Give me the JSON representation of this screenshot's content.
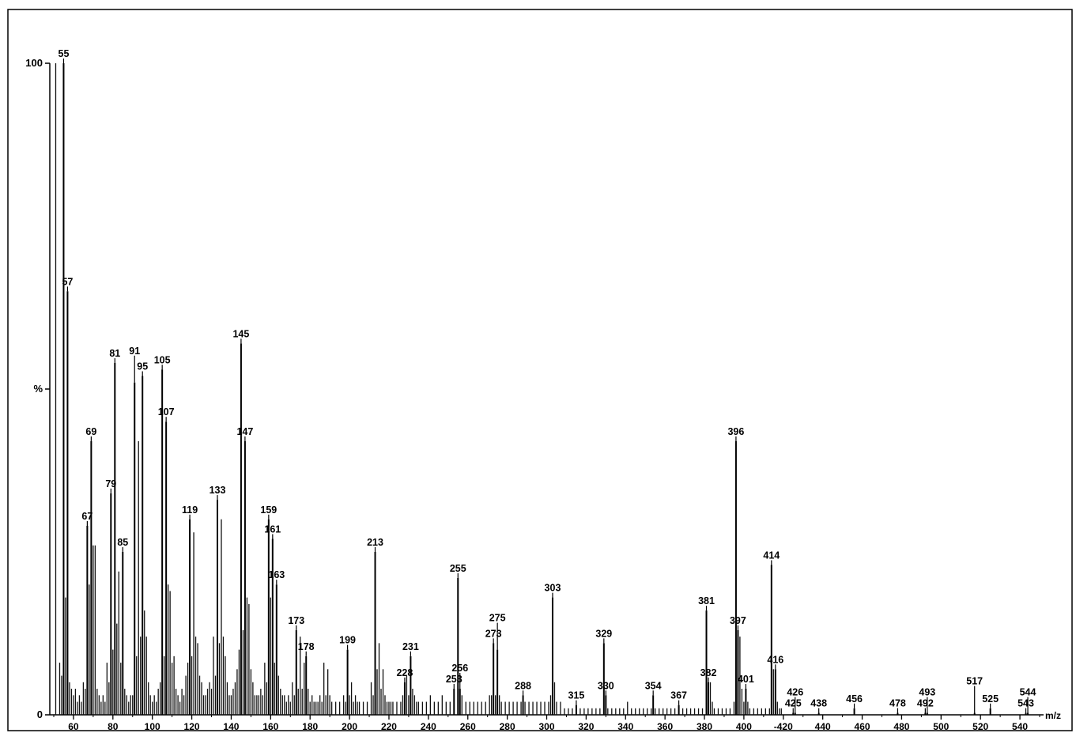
{
  "chart_data": {
    "type": "bar",
    "xlabel": "m/z",
    "ylabel": "%",
    "xlim": [
      48,
      552
    ],
    "ylim": [
      0,
      100
    ],
    "y_ticks": [
      {
        "value": 100,
        "label": "100"
      },
      {
        "value": 50,
        "label": "%"
      },
      {
        "value": 0,
        "label": "0"
      }
    ],
    "x_ticks": [
      60,
      80,
      100,
      120,
      140,
      160,
      180,
      200,
      220,
      240,
      260,
      280,
      300,
      320,
      340,
      360,
      380,
      400,
      420,
      440,
      460,
      480,
      500,
      520,
      540
    ],
    "x_tick_labels": [
      "60",
      "80",
      "100",
      "120",
      "140",
      "160",
      "180",
      "200",
      "220",
      "240",
      "260",
      "280",
      "300",
      "320",
      "340",
      "360",
      "380",
      "400",
      "-420",
      "440",
      "460",
      "480",
      "500",
      "520",
      "540"
    ],
    "peaks": [
      {
        "mz": 55,
        "intensity": 100,
        "label": "55"
      },
      {
        "mz": 57,
        "intensity": 65,
        "label": "57"
      },
      {
        "mz": 67,
        "intensity": 29,
        "label": "67"
      },
      {
        "mz": 69,
        "intensity": 42,
        "label": "69"
      },
      {
        "mz": 79,
        "intensity": 34,
        "label": "79"
      },
      {
        "mz": 81,
        "intensity": 54,
        "label": "81"
      },
      {
        "mz": 85,
        "intensity": 25,
        "label": "85"
      },
      {
        "mz": 91,
        "intensity": 51,
        "label": "91"
      },
      {
        "mz": 95,
        "intensity": 52,
        "label": "95"
      },
      {
        "mz": 105,
        "intensity": 53,
        "label": "105"
      },
      {
        "mz": 107,
        "intensity": 45,
        "label": "107"
      },
      {
        "mz": 119,
        "intensity": 30,
        "label": "119"
      },
      {
        "mz": 133,
        "intensity": 33,
        "label": "133"
      },
      {
        "mz": 145,
        "intensity": 57,
        "label": "145"
      },
      {
        "mz": 147,
        "intensity": 42,
        "label": "147"
      },
      {
        "mz": 159,
        "intensity": 30,
        "label": "159"
      },
      {
        "mz": 161,
        "intensity": 27,
        "label": "161"
      },
      {
        "mz": 163,
        "intensity": 20,
        "label": "163"
      },
      {
        "mz": 173,
        "intensity": 13,
        "label": "173"
      },
      {
        "mz": 178,
        "intensity": 9,
        "label": "178"
      },
      {
        "mz": 199,
        "intensity": 10,
        "label": "199"
      },
      {
        "mz": 213,
        "intensity": 25,
        "label": "213"
      },
      {
        "mz": 228,
        "intensity": 5,
        "label": "228"
      },
      {
        "mz": 231,
        "intensity": 9,
        "label": "231"
      },
      {
        "mz": 253,
        "intensity": 4,
        "label": "253"
      },
      {
        "mz": 255,
        "intensity": 21,
        "label": "255"
      },
      {
        "mz": 256,
        "intensity": 4,
        "label": "256"
      },
      {
        "mz": 273,
        "intensity": 11,
        "label": "273"
      },
      {
        "mz": 275,
        "intensity": 10,
        "label": "275"
      },
      {
        "mz": 288,
        "intensity": 3,
        "label": "288"
      },
      {
        "mz": 303,
        "intensity": 18,
        "label": "303"
      },
      {
        "mz": 315,
        "intensity": 1.5,
        "label": "315"
      },
      {
        "mz": 329,
        "intensity": 11,
        "label": "329"
      },
      {
        "mz": 330,
        "intensity": 3,
        "label": "330"
      },
      {
        "mz": 354,
        "intensity": 3,
        "label": "354"
      },
      {
        "mz": 367,
        "intensity": 1.5,
        "label": "367"
      },
      {
        "mz": 381,
        "intensity": 16,
        "label": "381"
      },
      {
        "mz": 382,
        "intensity": 5,
        "label": "382"
      },
      {
        "mz": 396,
        "intensity": 42,
        "label": "396"
      },
      {
        "mz": 397,
        "intensity": 13,
        "label": "397"
      },
      {
        "mz": 401,
        "intensity": 4,
        "label": "401"
      },
      {
        "mz": 414,
        "intensity": 23,
        "label": "414"
      },
      {
        "mz": 416,
        "intensity": 7,
        "label": "416"
      },
      {
        "mz": 425,
        "intensity": 0.3,
        "label": "425"
      },
      {
        "mz": 426,
        "intensity": 0.3,
        "label": "426"
      },
      {
        "mz": 438,
        "intensity": 0.3,
        "label": "438"
      },
      {
        "mz": 456,
        "intensity": 1,
        "label": "456"
      },
      {
        "mz": 478,
        "intensity": 0.3,
        "label": "478"
      },
      {
        "mz": 492,
        "intensity": 0.3,
        "label": "492"
      },
      {
        "mz": 493,
        "intensity": 0.3,
        "label": "493"
      },
      {
        "mz": 517,
        "intensity": 0.3,
        "label": "517"
      },
      {
        "mz": 525,
        "intensity": 1,
        "label": "525"
      },
      {
        "mz": 543,
        "intensity": 0.3,
        "label": "543"
      },
      {
        "mz": 544,
        "intensity": 0.3,
        "label": "544"
      }
    ],
    "minor_peaks": [
      [
        51,
        100
      ],
      [
        53,
        8
      ],
      [
        54,
        6
      ],
      [
        56,
        18
      ],
      [
        58,
        5
      ],
      [
        59,
        4
      ],
      [
        60,
        3
      ],
      [
        61,
        4
      ],
      [
        62,
        2
      ],
      [
        63,
        3
      ],
      [
        64,
        2
      ],
      [
        65,
        5
      ],
      [
        66,
        4
      ],
      [
        68,
        20
      ],
      [
        70,
        26
      ],
      [
        71,
        26
      ],
      [
        72,
        4
      ],
      [
        73,
        3
      ],
      [
        74,
        2
      ],
      [
        75,
        3
      ],
      [
        76,
        2
      ],
      [
        77,
        8
      ],
      [
        78,
        5
      ],
      [
        80,
        10
      ],
      [
        82,
        14
      ],
      [
        83,
        22
      ],
      [
        84,
        8
      ],
      [
        86,
        4
      ],
      [
        87,
        3
      ],
      [
        88,
        2
      ],
      [
        89,
        3
      ],
      [
        90,
        3
      ],
      [
        92,
        9
      ],
      [
        93,
        42
      ],
      [
        94,
        12
      ],
      [
        96,
        16
      ],
      [
        97,
        12
      ],
      [
        98,
        5
      ],
      [
        99,
        3
      ],
      [
        100,
        2
      ],
      [
        101,
        3
      ],
      [
        102,
        2
      ],
      [
        103,
        4
      ],
      [
        104,
        5
      ],
      [
        106,
        9
      ],
      [
        108,
        20
      ],
      [
        109,
        19
      ],
      [
        110,
        8
      ],
      [
        111,
        9
      ],
      [
        112,
        4
      ],
      [
        113,
        3
      ],
      [
        114,
        2
      ],
      [
        115,
        4
      ],
      [
        116,
        3
      ],
      [
        117,
        6
      ],
      [
        118,
        8
      ],
      [
        120,
        9
      ],
      [
        121,
        28
      ],
      [
        122,
        12
      ],
      [
        123,
        11
      ],
      [
        124,
        6
      ],
      [
        125,
        5
      ],
      [
        126,
        3
      ],
      [
        127,
        3
      ],
      [
        128,
        4
      ],
      [
        129,
        5
      ],
      [
        130,
        4
      ],
      [
        131,
        12
      ],
      [
        132,
        6
      ],
      [
        134,
        11
      ],
      [
        135,
        30
      ],
      [
        136,
        12
      ],
      [
        137,
        9
      ],
      [
        138,
        5
      ],
      [
        139,
        3
      ],
      [
        140,
        3
      ],
      [
        141,
        4
      ],
      [
        142,
        5
      ],
      [
        143,
        7
      ],
      [
        144,
        10
      ],
      [
        146,
        13
      ],
      [
        148,
        18
      ],
      [
        149,
        17
      ],
      [
        150,
        7
      ],
      [
        151,
        5
      ],
      [
        152,
        3
      ],
      [
        153,
        3
      ],
      [
        154,
        3
      ],
      [
        155,
        4
      ],
      [
        156,
        3
      ],
      [
        157,
        8
      ],
      [
        158,
        5
      ],
      [
        160,
        18
      ],
      [
        162,
        8
      ],
      [
        164,
        6
      ],
      [
        165,
        4
      ],
      [
        166,
        3
      ],
      [
        167,
        3
      ],
      [
        168,
        2
      ],
      [
        169,
        3
      ],
      [
        170,
        2
      ],
      [
        171,
        5
      ],
      [
        172,
        3
      ],
      [
        174,
        4
      ],
      [
        175,
        12
      ],
      [
        176,
        4
      ],
      [
        177,
        8
      ],
      [
        179,
        4
      ],
      [
        180,
        2
      ],
      [
        181,
        3
      ],
      [
        182,
        2
      ],
      [
        183,
        2
      ],
      [
        184,
        2
      ],
      [
        185,
        3
      ],
      [
        186,
        2
      ],
      [
        187,
        8
      ],
      [
        188,
        3
      ],
      [
        189,
        7
      ],
      [
        190,
        3
      ],
      [
        191,
        2
      ],
      [
        193,
        2
      ],
      [
        195,
        2
      ],
      [
        197,
        3
      ],
      [
        198,
        2
      ],
      [
        200,
        3
      ],
      [
        201,
        5
      ],
      [
        202,
        2
      ],
      [
        203,
        3
      ],
      [
        204,
        2
      ],
      [
        205,
        2
      ],
      [
        207,
        2
      ],
      [
        209,
        2
      ],
      [
        211,
        5
      ],
      [
        212,
        3
      ],
      [
        214,
        7
      ],
      [
        215,
        11
      ],
      [
        216,
        4
      ],
      [
        217,
        7
      ],
      [
        218,
        3
      ],
      [
        219,
        2
      ],
      [
        220,
        2
      ],
      [
        221,
        2
      ],
      [
        222,
        2
      ],
      [
        224,
        2
      ],
      [
        226,
        2
      ],
      [
        227,
        3
      ],
      [
        229,
        6
      ],
      [
        230,
        3
      ],
      [
        232,
        4
      ],
      [
        233,
        3
      ],
      [
        234,
        2
      ],
      [
        235,
        2
      ],
      [
        237,
        2
      ],
      [
        239,
        2
      ],
      [
        241,
        3
      ],
      [
        243,
        2
      ],
      [
        245,
        2
      ],
      [
        247,
        3
      ],
      [
        249,
        2
      ],
      [
        251,
        2
      ],
      [
        257,
        3
      ],
      [
        259,
        2
      ],
      [
        261,
        2
      ],
      [
        263,
        2
      ],
      [
        265,
        2
      ],
      [
        267,
        2
      ],
      [
        269,
        2
      ],
      [
        271,
        3
      ],
      [
        272,
        3
      ],
      [
        274,
        3
      ],
      [
        276,
        3
      ],
      [
        277,
        2
      ],
      [
        279,
        2
      ],
      [
        281,
        2
      ],
      [
        283,
        2
      ],
      [
        285,
        2
      ],
      [
        287,
        2
      ],
      [
        289,
        2
      ],
      [
        291,
        2
      ],
      [
        293,
        2
      ],
      [
        295,
        2
      ],
      [
        297,
        2
      ],
      [
        299,
        2
      ],
      [
        301,
        2
      ],
      [
        302,
        3
      ],
      [
        304,
        5
      ],
      [
        305,
        2
      ],
      [
        307,
        2
      ],
      [
        309,
        1
      ],
      [
        311,
        1
      ],
      [
        313,
        1
      ],
      [
        317,
        1
      ],
      [
        319,
        1
      ],
      [
        321,
        1
      ],
      [
        323,
        1
      ],
      [
        325,
        1
      ],
      [
        327,
        1
      ],
      [
        331,
        1
      ],
      [
        333,
        1
      ],
      [
        335,
        1
      ],
      [
        337,
        1
      ],
      [
        339,
        1
      ],
      [
        341,
        2
      ],
      [
        343,
        1
      ],
      [
        345,
        1
      ],
      [
        347,
        1
      ],
      [
        349,
        1
      ],
      [
        351,
        1
      ],
      [
        353,
        1
      ],
      [
        355,
        1
      ],
      [
        357,
        1
      ],
      [
        359,
        1
      ],
      [
        361,
        1
      ],
      [
        363,
        1
      ],
      [
        365,
        1
      ],
      [
        369,
        1
      ],
      [
        371,
        1
      ],
      [
        373,
        1
      ],
      [
        375,
        1
      ],
      [
        377,
        1
      ],
      [
        379,
        1
      ],
      [
        383,
        5
      ],
      [
        384,
        2
      ],
      [
        385,
        1
      ],
      [
        387,
        1
      ],
      [
        389,
        1
      ],
      [
        391,
        1
      ],
      [
        393,
        1
      ],
      [
        395,
        2
      ],
      [
        398,
        12
      ],
      [
        399,
        4
      ],
      [
        400,
        2
      ],
      [
        402,
        2
      ],
      [
        403,
        1
      ],
      [
        405,
        1
      ],
      [
        407,
        1
      ],
      [
        409,
        1
      ],
      [
        411,
        1
      ],
      [
        413,
        1
      ],
      [
        415,
        7
      ],
      [
        417,
        2
      ],
      [
        418,
        1
      ],
      [
        419,
        1
      ]
    ]
  }
}
